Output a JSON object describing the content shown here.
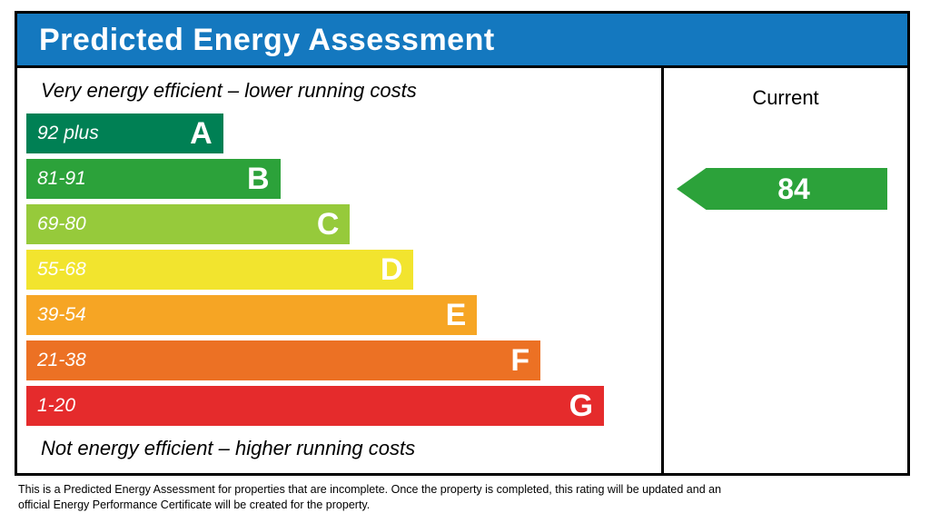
{
  "header": {
    "title": "Predicted Energy Assessment",
    "bg_color": "#1478bf"
  },
  "chart_data": {
    "type": "bar",
    "title": "Predicted Energy Assessment",
    "top_label": "Very energy efficient – lower running costs",
    "bottom_label": "Not energy efficient – higher running costs",
    "current_column_header": "Current",
    "current_value": "84",
    "current_band": "B",
    "arrow_color": "#2ca23a",
    "bands": [
      {
        "letter": "A",
        "range": "92 plus",
        "color": "#008054",
        "width_pct": 31
      },
      {
        "letter": "B",
        "range": "81-91",
        "color": "#2ca23a",
        "width_pct": 40
      },
      {
        "letter": "C",
        "range": "69-80",
        "color": "#96ca3b",
        "width_pct": 51
      },
      {
        "letter": "D",
        "range": "55-68",
        "color": "#f2e42e",
        "width_pct": 61
      },
      {
        "letter": "E",
        "range": "39-54",
        "color": "#f6a524",
        "width_pct": 71
      },
      {
        "letter": "F",
        "range": "21-38",
        "color": "#ec7124",
        "width_pct": 81
      },
      {
        "letter": "G",
        "range": "1-20",
        "color": "#e52b2c",
        "width_pct": 91
      }
    ]
  },
  "footer": {
    "note": "This is a Predicted Energy Assessment for properties that are incomplete. Once the property is completed, this rating will be updated and an official Energy Performance Certificate will be created for the property."
  }
}
